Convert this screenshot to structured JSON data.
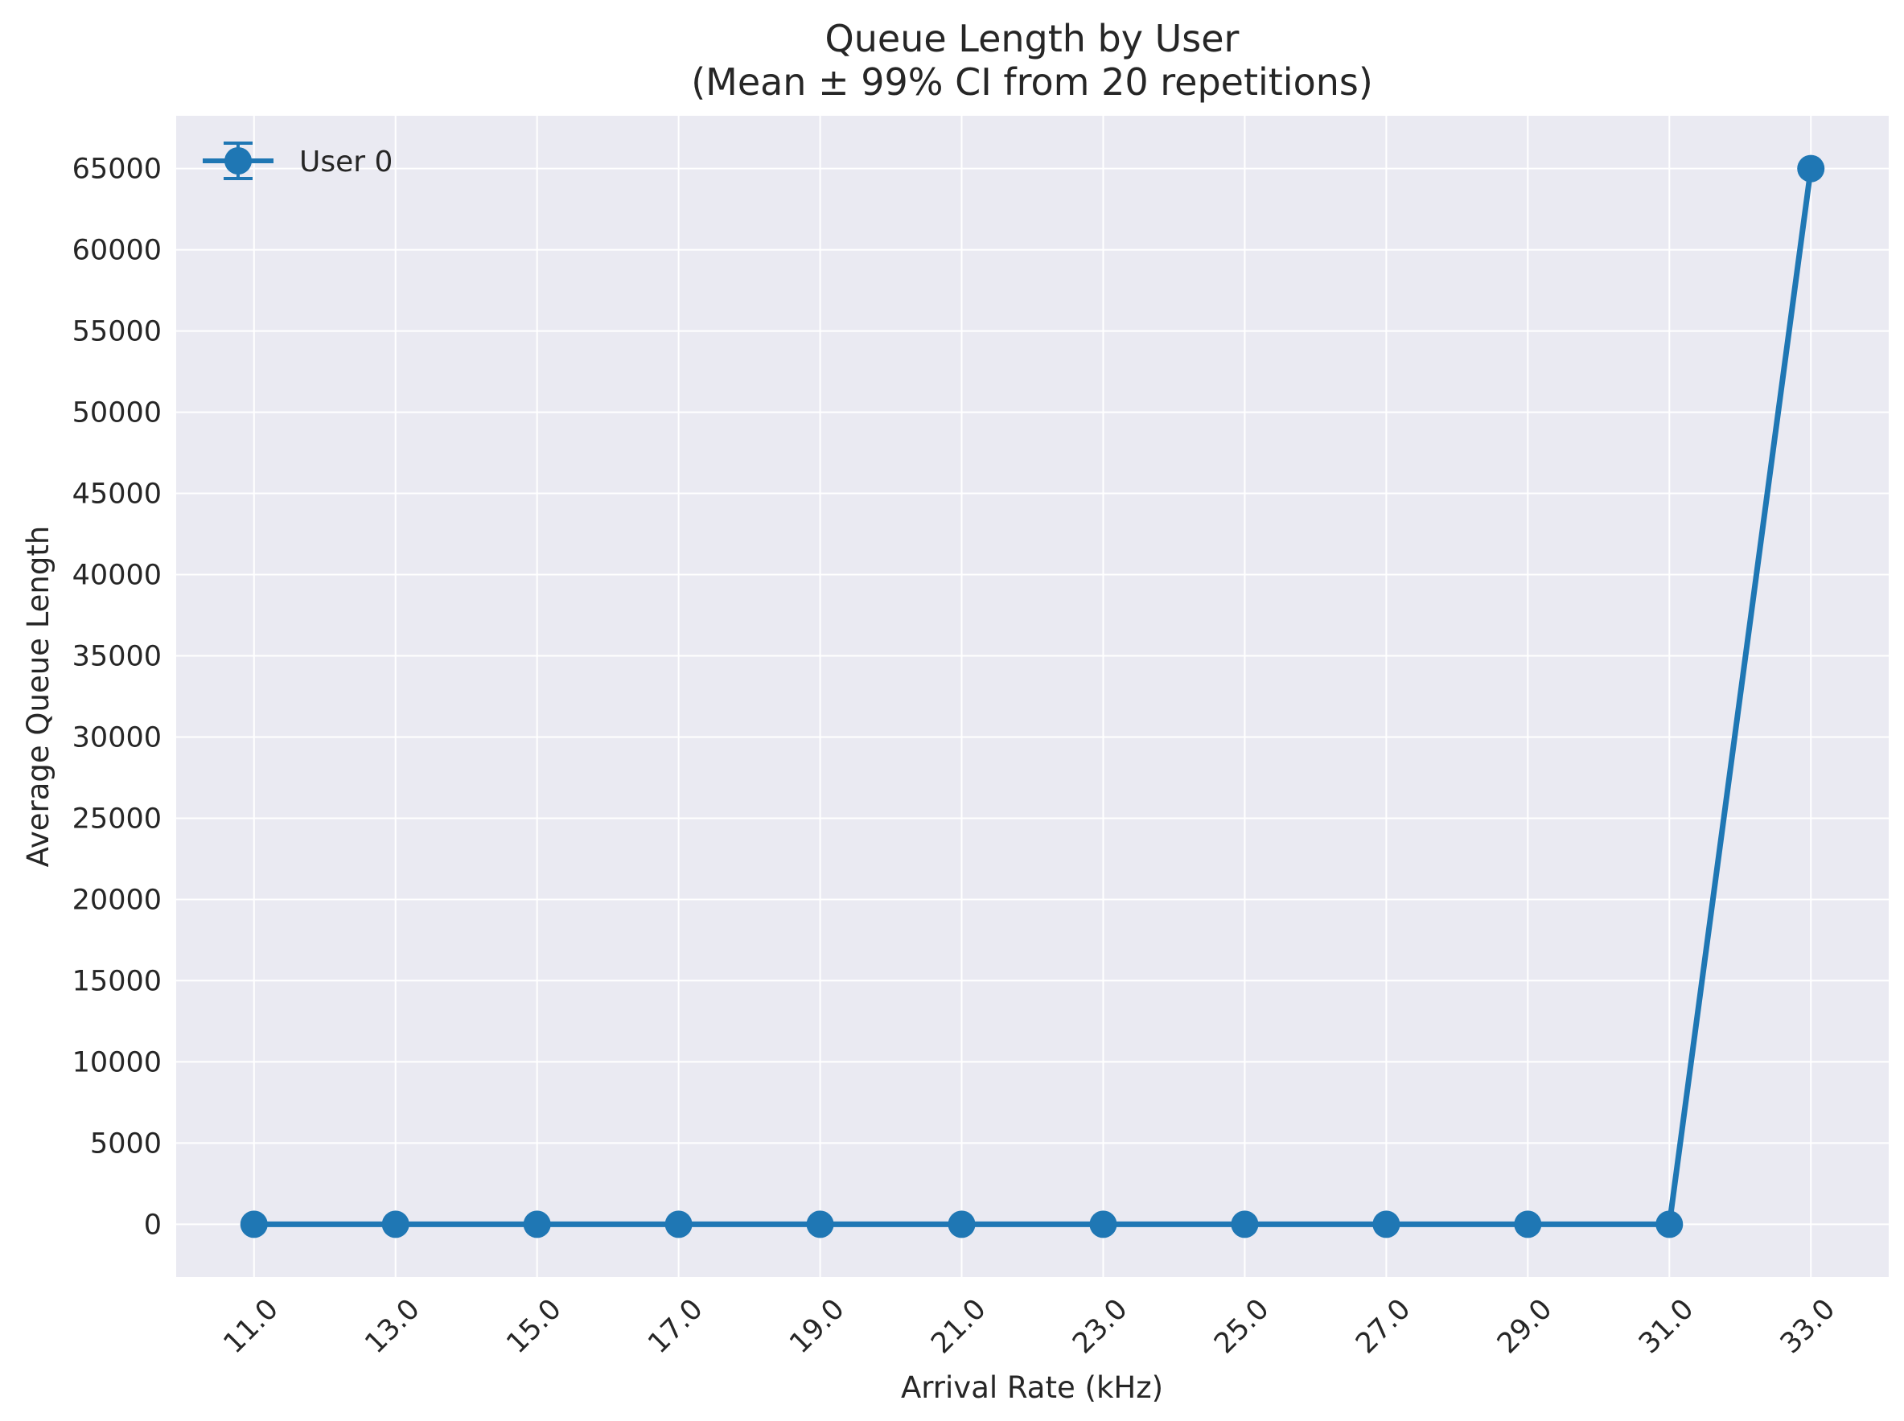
{
  "chart_data": {
    "type": "line",
    "title_line1": "Queue Length by User",
    "title_line2": "(Mean ± 99% CI from 20 repetitions)",
    "xlabel": "Arrival Rate (kHz)",
    "ylabel": "Average Queue Length",
    "x_ticks": [
      "11.0",
      "13.0",
      "15.0",
      "17.0",
      "19.0",
      "21.0",
      "23.0",
      "25.0",
      "27.0",
      "29.0",
      "31.0",
      "33.0"
    ],
    "y_ticks": [
      "0",
      "5000",
      "10000",
      "15000",
      "20000",
      "25000",
      "30000",
      "35000",
      "40000",
      "45000",
      "50000",
      "55000",
      "60000",
      "65000"
    ],
    "xlim": [
      9.9,
      34.1
    ],
    "ylim": [
      -3250,
      68250
    ],
    "grid": true,
    "legend_position": "top-left",
    "series": [
      {
        "name": "User 0",
        "color": "#1f77b4",
        "x": [
          11,
          13,
          15,
          17,
          19,
          21,
          23,
          25,
          27,
          29,
          31,
          33
        ],
        "y": [
          0,
          0,
          0,
          0,
          0,
          0,
          0,
          0,
          0,
          0,
          0,
          65000
        ]
      }
    ]
  }
}
